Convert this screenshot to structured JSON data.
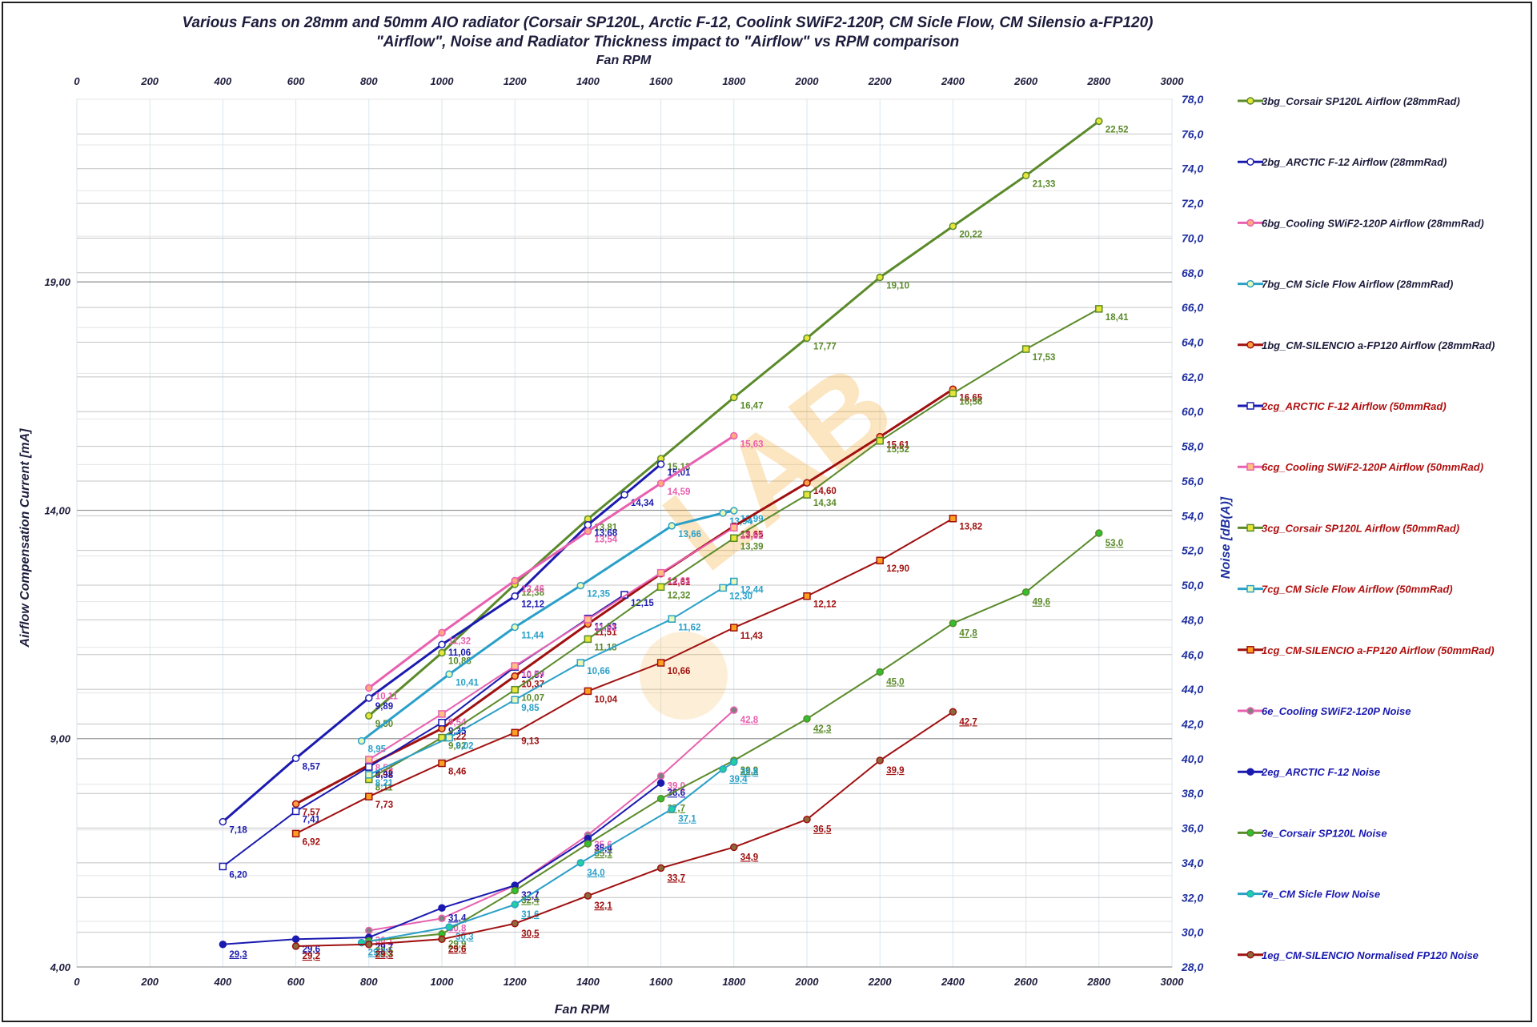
{
  "chart_data": {
    "type": "line",
    "title": "Various Fans on 28mm and 50mm AIO radiator  (Corsair SP120L, Arctic F-12,  Coolink SWiF2-120P,  CM Sicle Flow,  CM Silensio a-FP120)",
    "subtitle": "\"Airflow\",  Noise and Radiator Thickness impact to \"Airflow\"  vs RPM comparison",
    "xlabel_top": "Fan RPM",
    "xlabel": "Fan RPM",
    "ylabel": "Airflow Compensation Current  [mA]",
    "ylabel_right": "Noise  [dB(A)]",
    "xlim": [
      0,
      3000
    ],
    "ylim": [
      4,
      23
    ],
    "ylim_right": [
      28,
      78
    ],
    "x_ticks": [
      "0",
      "200",
      "400",
      "600",
      "800",
      "1000",
      "1200",
      "1400",
      "1600",
      "1800",
      "2000",
      "2200",
      "2400",
      "2600",
      "2800",
      "3000"
    ],
    "y_ticks": [
      "4,00",
      "9,00",
      "14,00",
      "19,00"
    ],
    "y_ticks_right": [
      "28,0",
      "30,0",
      "32,0",
      "34,0",
      "36,0",
      "38,0",
      "40,0",
      "42,0",
      "44,0",
      "46,0",
      "48,0",
      "50,0",
      "52,0",
      "54,0",
      "56,0",
      "58,0",
      "60,0",
      "62,0",
      "64,0",
      "66,0",
      "68,0",
      "70,0",
      "72,0",
      "74,0",
      "76,0",
      "78,0"
    ],
    "grid": true,
    "legend_position": "right",
    "watermark": "LAB",
    "series": [
      {
        "name": "3bg_Corsair SP120L Airflow (28mmRad)",
        "color": "#5a8a2a",
        "axis": "left",
        "marker": "circle",
        "mfill": "#e6e63a",
        "width": 3,
        "x": [
          800,
          1000,
          1200,
          1400,
          1600,
          1800,
          2000,
          2200,
          2400,
          2600,
          2800
        ],
        "y": [
          9.5,
          10.88,
          12.38,
          13.81,
          15.13,
          16.47,
          17.77,
          19.1,
          20.22,
          21.33,
          22.52
        ],
        "labels": [
          "9,50",
          "10,88",
          "12,38",
          "13,81",
          "15,13",
          "16,47",
          "17,77",
          "19,10",
          "20,22",
          "21,33",
          "22,52"
        ]
      },
      {
        "name": "2bg_ARCTIC F-12 Airflow (28mmRad)",
        "color": "#1a1ab0",
        "axis": "left",
        "marker": "circle",
        "mfill": "#ffffff",
        "width": 3,
        "x": [
          400,
          600,
          800,
          1000,
          1200,
          1400,
          1500,
          1600
        ],
        "y": [
          7.18,
          8.57,
          9.89,
          11.06,
          12.12,
          13.68,
          14.34,
          15.01
        ],
        "labels": [
          "7,18",
          "8,57",
          "9,89",
          "11,06",
          "12,12",
          "13,68",
          "14,34",
          "15,01"
        ]
      },
      {
        "name": "6bg_Cooling  SWiF2-120P  Airflow (28mmRad)",
        "color": "#e860b0",
        "axis": "left",
        "marker": "circle",
        "mfill": "#ffa880",
        "width": 3,
        "x": [
          800,
          1000,
          1200,
          1400,
          1600,
          1800
        ],
        "y": [
          10.11,
          11.32,
          12.46,
          13.54,
          14.59,
          15.63
        ],
        "labels": [
          "10,11",
          "11,32",
          "12,46",
          "13,54",
          "14,59",
          "15,63"
        ]
      },
      {
        "name": "7bg_CM Sicle Flow  Airflow (28mmRad)",
        "color": "#2aa0c8",
        "axis": "left",
        "marker": "circle",
        "mfill": "#e8f8b8",
        "width": 3,
        "x": [
          780,
          1020,
          1200,
          1380,
          1630,
          1770,
          1800
        ],
        "y": [
          8.95,
          10.41,
          11.44,
          12.35,
          13.66,
          13.94,
          13.99
        ],
        "labels": [
          "8,95",
          "10,41",
          "11,44",
          "12,35",
          "13,66",
          "13,94",
          "13,99"
        ]
      },
      {
        "name": "1bg_CM-SILENCIO a-FP120 Airflow (28mmRad)",
        "color": "#a01010",
        "axis": "left",
        "marker": "circle",
        "mfill": "#ffa040",
        "width": 3,
        "x": [
          600,
          800,
          1000,
          1200,
          1400,
          1600,
          1800,
          2000,
          2200,
          2400
        ],
        "y": [
          7.57,
          8.42,
          9.22,
          10.37,
          11.51,
          12.61,
          13.65,
          14.6,
          15.61,
          16.65
        ],
        "labels": [
          "7,57",
          "8,42",
          "9,22",
          "10,37",
          "11,51",
          "12,61",
          "13,65",
          "14,60",
          "15,61",
          "16,65"
        ]
      },
      {
        "name": "2cg_ARCTIC F-12 Airflow (50mmRad)",
        "color": "#1a1ab0",
        "axis": "left",
        "marker": "square",
        "mfill": "#ffffff",
        "width": 2,
        "x": [
          400,
          600,
          800,
          1000,
          1200,
          1400,
          1500
        ],
        "y": [
          6.2,
          7.41,
          8.38,
          9.35,
          10.57,
          11.63,
          12.15
        ],
        "labels": [
          "6,20",
          "7,41",
          "8,38",
          "9,35",
          "10,57",
          "11,63",
          "12,15"
        ]
      },
      {
        "name": "6cg_Cooling SWiF2-120P  Airflow (50mmRad)",
        "color": "#e860b0",
        "axis": "left",
        "marker": "square",
        "mfill": "#ffc080",
        "width": 2,
        "x": [
          800,
          1000,
          1200,
          1400,
          1600,
          1800
        ],
        "y": [
          8.54,
          9.54,
          10.59,
          11.61,
          12.63,
          13.62
        ],
        "labels": [
          "8,54",
          "9,54",
          "10,59",
          "11,61",
          "12,63",
          "13,62"
        ]
      },
      {
        "name": "3cg_Corsair SP120L Airflow (50mmRad)",
        "color": "#5a8a2a",
        "axis": "left",
        "marker": "square",
        "mfill": "#e6e63a",
        "width": 2,
        "x": [
          800,
          1000,
          1200,
          1400,
          1600,
          1800,
          2000,
          2200,
          2400,
          2600,
          2800
        ],
        "y": [
          8.11,
          9.02,
          10.07,
          11.18,
          12.32,
          13.39,
          14.34,
          15.52,
          16.56,
          17.53,
          18.41
        ],
        "labels": [
          "8,11",
          "9,02",
          "10,07",
          "11,18",
          "12,32",
          "13,39",
          "14,34",
          "15,52",
          "16,56",
          "17,53",
          "18,41"
        ]
      },
      {
        "name": "7cg_CM Sicle Flow  Airflow (50mmRad)",
        "color": "#2aa0c8",
        "axis": "left",
        "marker": "square",
        "mfill": "#e8f8b8",
        "width": 2,
        "x": [
          800,
          1020,
          1200,
          1380,
          1630,
          1770,
          1800
        ],
        "y": [
          8.21,
          9.02,
          9.85,
          10.66,
          11.62,
          12.3,
          12.44
        ],
        "labels": [
          "8,21",
          "9,02",
          "9,85",
          "10,66",
          "11,62",
          "12,30",
          "12,44"
        ]
      },
      {
        "name": "1cg_CM-SILENCIO a-FP120 Airflow (50mmRad)",
        "color": "#a01010",
        "axis": "left",
        "marker": "square",
        "mfill": "#ffa020",
        "width": 2,
        "x": [
          600,
          800,
          1000,
          1200,
          1400,
          1600,
          1800,
          2000,
          2200,
          2400
        ],
        "y": [
          6.92,
          7.73,
          8.46,
          9.13,
          10.04,
          10.66,
          11.43,
          12.12,
          12.9,
          13.82
        ],
        "labels": [
          "6,92",
          "7,73",
          "8,46",
          "9,13",
          "10,04",
          "10,66",
          "11,43",
          "12,12",
          "12,90",
          "13,82"
        ]
      },
      {
        "name": "6e_Cooling SWiF2-120P  Noise",
        "color": "#e860b0",
        "axis": "right",
        "marker": "circle",
        "mfill": "#808080",
        "width": 2,
        "x": [
          800,
          1000,
          1200,
          1400,
          1600,
          1800
        ],
        "y": [
          30.1,
          30.8,
          32.7,
          35.6,
          39.0,
          42.8
        ],
        "labels": [
          "30,1",
          "30,8",
          "32,7",
          "35,6",
          "39,0",
          "42,8"
        ]
      },
      {
        "name": "2eg_ARCTIC F-12 Noise",
        "color": "#1a1ab0",
        "axis": "right",
        "marker": "circle",
        "mfill": "#1a1ab0",
        "width": 2,
        "x": [
          400,
          600,
          800,
          1000,
          1200,
          1400,
          1600
        ],
        "y": [
          29.3,
          29.6,
          29.7,
          31.4,
          32.7,
          35.4,
          38.6
        ],
        "labels": [
          "29,3",
          "29,6",
          "29,7",
          "31,4",
          "32,7",
          "35,4",
          "38,6"
        ]
      },
      {
        "name": "3e_Corsair SP120L Noise",
        "color": "#5a8a2a",
        "axis": "right",
        "marker": "circle",
        "mfill": "#30c030",
        "width": 2,
        "x": [
          800,
          1000,
          1200,
          1400,
          1600,
          1800,
          2000,
          2200,
          2400,
          2600,
          2800
        ],
        "y": [
          29.5,
          29.9,
          32.4,
          35.1,
          37.7,
          39.9,
          42.3,
          45.0,
          47.8,
          49.6,
          53.0
        ],
        "labels": [
          "29,5",
          "29,9",
          "32,4",
          "35,1",
          "37,7",
          "39,9",
          "42,3",
          "45,0",
          "47,8",
          "49,6",
          "53,0"
        ]
      },
      {
        "name": "7e_CM Sicle Flow Noise",
        "color": "#2aa0c8",
        "axis": "right",
        "marker": "circle",
        "mfill": "#20d0a0",
        "width": 2,
        "x": [
          780,
          1020,
          1200,
          1380,
          1630,
          1770,
          1800
        ],
        "y": [
          29.4,
          30.3,
          31.6,
          34.0,
          37.1,
          39.4,
          39.8
        ],
        "labels": [
          "29,4",
          "30,3",
          "31,6",
          "34,0",
          "37,1",
          "39,4",
          "39,8"
        ]
      },
      {
        "name": "1eg_CM-SILENCIO Normalised  FP120 Noise",
        "color": "#a01010",
        "axis": "right",
        "marker": "circle",
        "mfill": "#8a6a3a",
        "width": 2,
        "x": [
          600,
          800,
          1000,
          1200,
          1400,
          1600,
          1800,
          2000,
          2200,
          2400
        ],
        "y": [
          29.2,
          29.3,
          29.6,
          30.5,
          32.1,
          33.7,
          34.9,
          36.5,
          39.9,
          42.7
        ],
        "labels": [
          "29,2",
          "29,3",
          "29,6",
          "30,5",
          "32,1",
          "33,7",
          "34,9",
          "36,5",
          "39,9",
          "42,7"
        ]
      }
    ]
  }
}
